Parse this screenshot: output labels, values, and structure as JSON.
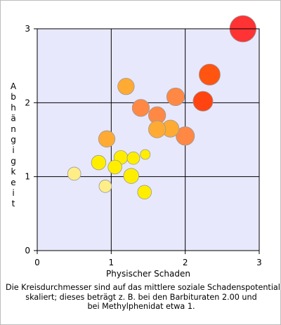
{
  "chart_data": {
    "type": "scatter",
    "xlabel": "Physischer Schaden",
    "ylabel": "Abhängigkeit",
    "xlim": [
      0,
      3
    ],
    "ylim": [
      0,
      3
    ],
    "x_ticks": [
      "0",
      "1",
      "2",
      "3"
    ],
    "y_ticks": [
      "0",
      "1",
      "2",
      "3"
    ],
    "grid": true,
    "background_color": "#e8e8fc",
    "points": [
      {
        "x": 2.78,
        "y": 3.0,
        "r": 2.0,
        "color": "#ff3333"
      },
      {
        "x": 2.33,
        "y": 2.38,
        "r": 1.6,
        "color": "#ff5511"
      },
      {
        "x": 2.24,
        "y": 2.02,
        "r": 1.5,
        "color": "#ff4411"
      },
      {
        "x": 1.2,
        "y": 2.22,
        "r": 1.25,
        "color": "#ffaa33"
      },
      {
        "x": 1.87,
        "y": 2.08,
        "r": 1.35,
        "color": "#ff8844"
      },
      {
        "x": 1.4,
        "y": 1.93,
        "r": 1.3,
        "color": "#ff8844"
      },
      {
        "x": 1.62,
        "y": 1.83,
        "r": 1.3,
        "color": "#ff8844"
      },
      {
        "x": 1.8,
        "y": 1.65,
        "r": 1.3,
        "color": "#ffaa33"
      },
      {
        "x": 1.62,
        "y": 1.64,
        "r": 1.3,
        "color": "#ffaa33"
      },
      {
        "x": 2.0,
        "y": 1.55,
        "r": 1.4,
        "color": "#ff8844"
      },
      {
        "x": 0.94,
        "y": 1.51,
        "r": 1.25,
        "color": "#ffaa33"
      },
      {
        "x": 1.13,
        "y": 1.26,
        "r": 1.05,
        "color": "#ffee00"
      },
      {
        "x": 1.3,
        "y": 1.25,
        "r": 0.95,
        "color": "#ffee00"
      },
      {
        "x": 1.46,
        "y": 1.3,
        "r": 0.75,
        "color": "#ffee00"
      },
      {
        "x": 0.83,
        "y": 1.19,
        "r": 1.1,
        "color": "#ffee00"
      },
      {
        "x": 1.05,
        "y": 1.13,
        "r": 1.05,
        "color": "#ffee00"
      },
      {
        "x": 1.27,
        "y": 1.01,
        "r": 1.15,
        "color": "#ffee00"
      },
      {
        "x": 0.5,
        "y": 1.04,
        "r": 1.0,
        "color": "#ffee88"
      },
      {
        "x": 0.92,
        "y": 0.87,
        "r": 0.95,
        "color": "#ffee88"
      },
      {
        "x": 1.45,
        "y": 0.79,
        "r": 1.05,
        "color": "#ffee00"
      }
    ]
  },
  "caption": {
    "line1": "Die Kreisdurchmesser sind auf das mittlere soziale Schadenspotential",
    "line2": "skaliert; dieses beträgt z. B. bei den Barbituraten 2.00 und",
    "line3": "bei Methylphenidat etwa 1."
  }
}
